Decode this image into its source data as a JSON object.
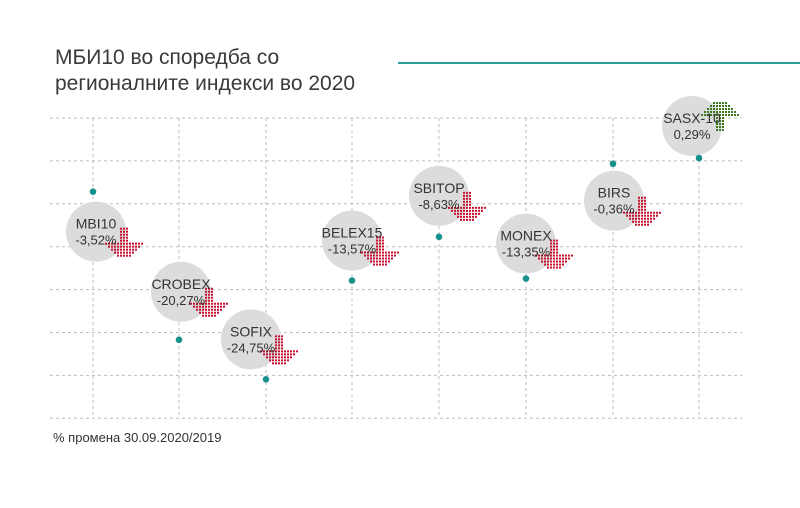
{
  "title_line1": "МБИ10 во споредба со",
  "title_line2": "регионалните индекси во 2020",
  "footnote": "% промена 30.09.2020/2019",
  "colors": {
    "accent": "#2a9d9a",
    "marker": "#17918c",
    "down_arrow": "#c8102e",
    "up_arrow": "#3d7a1f",
    "bubble": "#dcdcdc",
    "grid": "#bdbdbd"
  },
  "chart_data": {
    "type": "scatter",
    "categories": [
      "MBI10",
      "CROBEX",
      "SOFIX",
      "BELEX15",
      "SBITOP",
      "MONEX",
      "BIRS",
      "SASX-10"
    ],
    "values": [
      -3.52,
      -20.27,
      -24.75,
      -13.57,
      -8.63,
      -13.35,
      -0.36,
      0.29
    ],
    "labels": [
      "-3,52%",
      "-20,27%",
      "-24,75%",
      "-13,57%",
      "-8,63%",
      "-13,35%",
      "-0,36%",
      "0,29%"
    ],
    "direction": [
      "down",
      "down",
      "down",
      "down",
      "down",
      "down",
      "down",
      "up"
    ],
    "grid": true
  }
}
